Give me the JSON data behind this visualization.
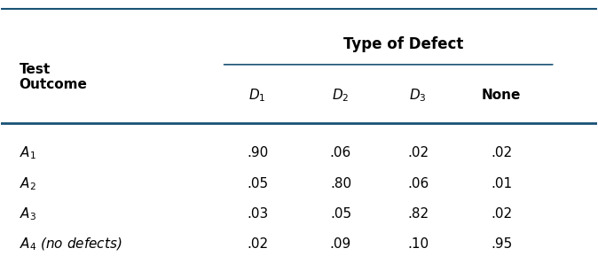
{
  "title": "Type of Defect",
  "col_header_label": "Test\nOutcome",
  "col_headers": [
    "$\\boldsymbol{D_1}$",
    "$\\boldsymbol{D_2}$",
    "$\\boldsymbol{D_3}$",
    "None"
  ],
  "row_labels": [
    "$A_1$",
    "$A_2$",
    "$A_3$",
    "$A_4$ (no defects)"
  ],
  "data": [
    [
      ".90",
      ".06",
      ".02",
      ".02"
    ],
    [
      ".05",
      ".80",
      ".06",
      ".01"
    ],
    [
      ".03",
      ".05",
      ".82",
      ".02"
    ],
    [
      ".02",
      ".09",
      ".10",
      ".95"
    ]
  ],
  "line_color": "#1a5276",
  "bg_color": "#ffffff",
  "text_color": "#000000",
  "header_fontsize": 11,
  "data_fontsize": 11
}
